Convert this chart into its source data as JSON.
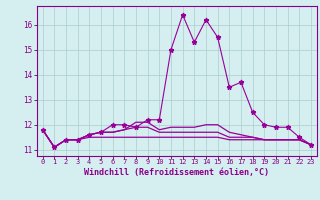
{
  "xlabel": "Windchill (Refroidissement éolien,°C)",
  "background_color": "#d5eef0",
  "grid_color": "#aacccc",
  "line_color": "#990099",
  "ylim": [
    10.75,
    16.75
  ],
  "xlim": [
    -0.5,
    23.5
  ],
  "yticks": [
    11,
    12,
    13,
    14,
    15,
    16
  ],
  "xtick_labels": [
    "0",
    "1",
    "2",
    "3",
    "4",
    "5",
    "6",
    "7",
    "8",
    "9",
    "10",
    "11",
    "12",
    "13",
    "14",
    "15",
    "16",
    "17",
    "18",
    "19",
    "20",
    "21",
    "22",
    "23"
  ],
  "series": [
    [
      11.8,
      11.1,
      11.4,
      11.4,
      11.6,
      11.7,
      12.0,
      12.0,
      11.9,
      12.2,
      12.2,
      15.0,
      16.4,
      15.3,
      16.2,
      15.5,
      13.5,
      13.7,
      12.5,
      12.0,
      11.9,
      11.9,
      11.5,
      11.2
    ],
    [
      11.8,
      11.1,
      11.4,
      11.4,
      11.6,
      11.7,
      11.7,
      11.8,
      12.1,
      12.1,
      11.8,
      11.9,
      11.9,
      11.9,
      12.0,
      12.0,
      11.7,
      11.6,
      11.5,
      11.4,
      11.4,
      11.4,
      11.4,
      11.2
    ],
    [
      11.8,
      11.1,
      11.4,
      11.4,
      11.6,
      11.7,
      11.7,
      11.8,
      11.9,
      11.9,
      11.7,
      11.7,
      11.7,
      11.7,
      11.7,
      11.7,
      11.5,
      11.5,
      11.5,
      11.4,
      11.4,
      11.4,
      11.4,
      11.2
    ],
    [
      11.8,
      11.1,
      11.4,
      11.4,
      11.5,
      11.5,
      11.5,
      11.5,
      11.5,
      11.5,
      11.5,
      11.5,
      11.5,
      11.5,
      11.5,
      11.5,
      11.4,
      11.4,
      11.4,
      11.4,
      11.4,
      11.4,
      11.4,
      11.2
    ]
  ]
}
